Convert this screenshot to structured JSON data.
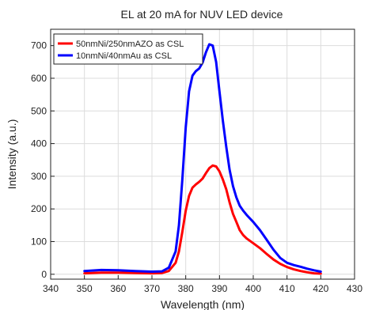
{
  "chart_data": {
    "type": "line",
    "title": "EL at 20 mA for NUV LED device",
    "xlabel": "Wavelength (nm)",
    "ylabel": "Intensity (a.u.)",
    "xlim": [
      340,
      430
    ],
    "ylim": [
      -15,
      750
    ],
    "xticks": [
      340,
      350,
      360,
      370,
      380,
      390,
      400,
      410,
      420,
      430
    ],
    "yticks": [
      0,
      100,
      200,
      300,
      400,
      500,
      600,
      700
    ],
    "grid": true,
    "legend_position": "top-left",
    "series": [
      {
        "name": "50nmNi/250nmAZO as CSL",
        "color": "#ff0000",
        "x": [
          350,
          355,
          360,
          365,
          370,
          373,
          375,
          377,
          378,
          379,
          380,
          381,
          382,
          383,
          384,
          385,
          386,
          387,
          388,
          389,
          390,
          391,
          392,
          393,
          394,
          395,
          396,
          397,
          398,
          400,
          402,
          404,
          406,
          408,
          410,
          412,
          414,
          416,
          418,
          420
        ],
        "y": [
          3,
          5,
          5,
          4,
          3,
          4,
          10,
          35,
          70,
          130,
          195,
          240,
          265,
          275,
          283,
          293,
          310,
          325,
          333,
          330,
          315,
          290,
          260,
          220,
          185,
          160,
          135,
          120,
          110,
          95,
          80,
          62,
          45,
          32,
          22,
          15,
          10,
          6,
          3,
          2
        ]
      },
      {
        "name": "10nmNi/40nmAu as CSL",
        "color": "#0000ff",
        "x": [
          350,
          355,
          360,
          365,
          370,
          373,
          375,
          377,
          378,
          379,
          380,
          381,
          382,
          383,
          384,
          385,
          386,
          387,
          388,
          389,
          390,
          391,
          392,
          393,
          394,
          395,
          396,
          397,
          398,
          400,
          402,
          404,
          406,
          408,
          410,
          412,
          414,
          416,
          418,
          420
        ],
        "y": [
          10,
          13,
          12,
          10,
          8,
          9,
          20,
          70,
          150,
          290,
          450,
          560,
          608,
          622,
          630,
          648,
          680,
          704,
          700,
          650,
          560,
          470,
          390,
          320,
          270,
          235,
          210,
          195,
          182,
          160,
          135,
          105,
          75,
          50,
          35,
          28,
          23,
          17,
          12,
          8
        ]
      }
    ]
  }
}
